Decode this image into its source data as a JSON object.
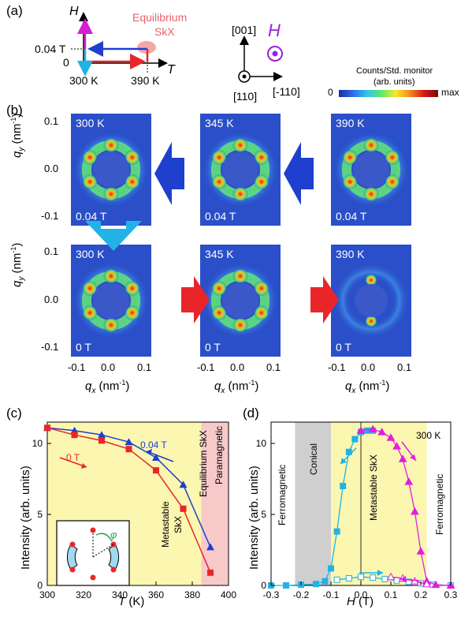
{
  "panel_a": {
    "label": "(a)",
    "axis_h": "H",
    "axis_t": "T",
    "field_label": "0.04 T",
    "zero_label": "0",
    "temp_low": "300 K",
    "temp_high": "390 K",
    "eq_line1": "Equilibrium",
    "eq_line2": "SkX",
    "dir_001": "[001]",
    "dir_110": "[110]",
    "dir_m110": "[-110]",
    "h_symbol": "H",
    "colorbar_title1": "Counts/Std. monitor",
    "colorbar_title2": "(arb. units)",
    "colorbar_min": "0",
    "colorbar_max": "max"
  },
  "panel_b": {
    "label": "(b)",
    "ylabel_q": "q",
    "ylabel_sub": "y",
    "ylabel_unit": " (nm",
    "ylabel_exp": "-1",
    "ylabel_close": ")",
    "xlabel_q": "q",
    "xlabel_sub": "x",
    "ticks": [
      "0.1",
      "0.0",
      "-0.1"
    ],
    "xticks": [
      "-0.1",
      "0.0",
      "0.1"
    ],
    "maps": [
      {
        "temp": "300 K",
        "field": "0.04 T"
      },
      {
        "temp": "345 K",
        "field": "0.04 T"
      },
      {
        "temp": "390 K",
        "field": "0.04 T"
      },
      {
        "temp": "300 K",
        "field": "0 T"
      },
      {
        "temp": "345 K",
        "field": "0 T"
      },
      {
        "temp": "390 K",
        "field": "0 T"
      }
    ]
  },
  "panel_c": {
    "label": "(c)",
    "xlabel": "T",
    "xunit": " (K)",
    "ylabel": "Intensity (arb. units)",
    "xticks": [
      "300",
      "320",
      "340",
      "360",
      "380",
      "400"
    ],
    "yticks": [
      "0",
      "5",
      "10"
    ],
    "series_004": "0.04 T",
    "series_0": "0 T",
    "region_meta1": "Metastable",
    "region_meta2": "SkX",
    "region_eq": "Equilibrium SkX",
    "region_para": "Paramagnetic",
    "colors": {
      "blue": "#1f3fcf",
      "red": "#e8262a",
      "yellow": "#fbf6b0",
      "pink": "#f7c9c9"
    }
  },
  "panel_d": {
    "label": "(d)",
    "xlabel": "H",
    "xunit": " (T)",
    "ylabel": "Intensity (arb. units)",
    "xticks": [
      "-0.3",
      "-0.2",
      "-0.1",
      "0.0",
      "0.1",
      "0.2",
      "0.3"
    ],
    "yticks": [
      "0",
      "5",
      "10"
    ],
    "temp_label": "300 K",
    "region_ferro_left": "Ferromagnetic",
    "region_conical": "Conical",
    "region_meta": "Metastable SkX",
    "region_ferro_right": "Ferromagnetic",
    "colors": {
      "cyan": "#21b3e6",
      "magenta": "#e11ee0",
      "gray": "#cfcfcf",
      "yellow": "#fbf6b0"
    }
  },
  "chart_data": [
    {
      "type": "line",
      "xlabel": "T (K)",
      "ylabel": "Intensity (arb. units)",
      "xlim": [
        300,
        400
      ],
      "ylim": [
        0,
        11.5
      ],
      "series": [
        {
          "name": "0.04 T",
          "x": [
            300,
            315,
            330,
            345,
            360,
            375,
            390
          ],
          "values": [
            11.1,
            10.9,
            10.6,
            10.1,
            9.0,
            7.1,
            2.7
          ]
        },
        {
          "name": "0 T",
          "x": [
            300,
            315,
            330,
            345,
            360,
            375,
            390
          ],
          "values": [
            11.1,
            10.6,
            10.2,
            9.6,
            8.1,
            5.4,
            0.9
          ]
        }
      ]
    },
    {
      "type": "scatter",
      "xlabel": "H (T)",
      "ylabel": "Intensity (arb. units)",
      "xlim": [
        -0.3,
        0.3
      ],
      "ylim": [
        0,
        11.5
      ],
      "series": [
        {
          "x": [
            -0.3,
            -0.25,
            -0.2,
            -0.15,
            -0.12,
            -0.1,
            -0.08,
            -0.06,
            -0.04,
            -0.02,
            0.0,
            0.02,
            0.04
          ],
          "values": [
            0.0,
            0.0,
            0.05,
            0.1,
            0.3,
            1.2,
            3.8,
            7.0,
            9.4,
            10.3,
            10.8,
            10.9,
            10.9
          ]
        },
        {
          "x": [
            -0.08,
            -0.04,
            0.0,
            0.04,
            0.08,
            0.12,
            0.16,
            0.2,
            0.24,
            0.3
          ],
          "values": [
            0.4,
            0.5,
            0.6,
            0.55,
            0.45,
            0.35,
            0.25,
            0.15,
            0.05,
            0.0
          ]
        },
        {
          "x": [
            0.0,
            0.04,
            0.07,
            0.1,
            0.12,
            0.14,
            0.16,
            0.18,
            0.2,
            0.22,
            0.25,
            0.3
          ],
          "values": [
            10.9,
            11.0,
            10.8,
            10.4,
            9.8,
            8.9,
            7.3,
            5.2,
            2.4,
            0.3,
            0.05,
            0.0
          ]
        },
        {
          "x": [
            0.1,
            0.14,
            0.18,
            0.22
          ],
          "values": [
            0.6,
            0.5,
            0.3,
            0.1
          ]
        }
      ]
    }
  ]
}
